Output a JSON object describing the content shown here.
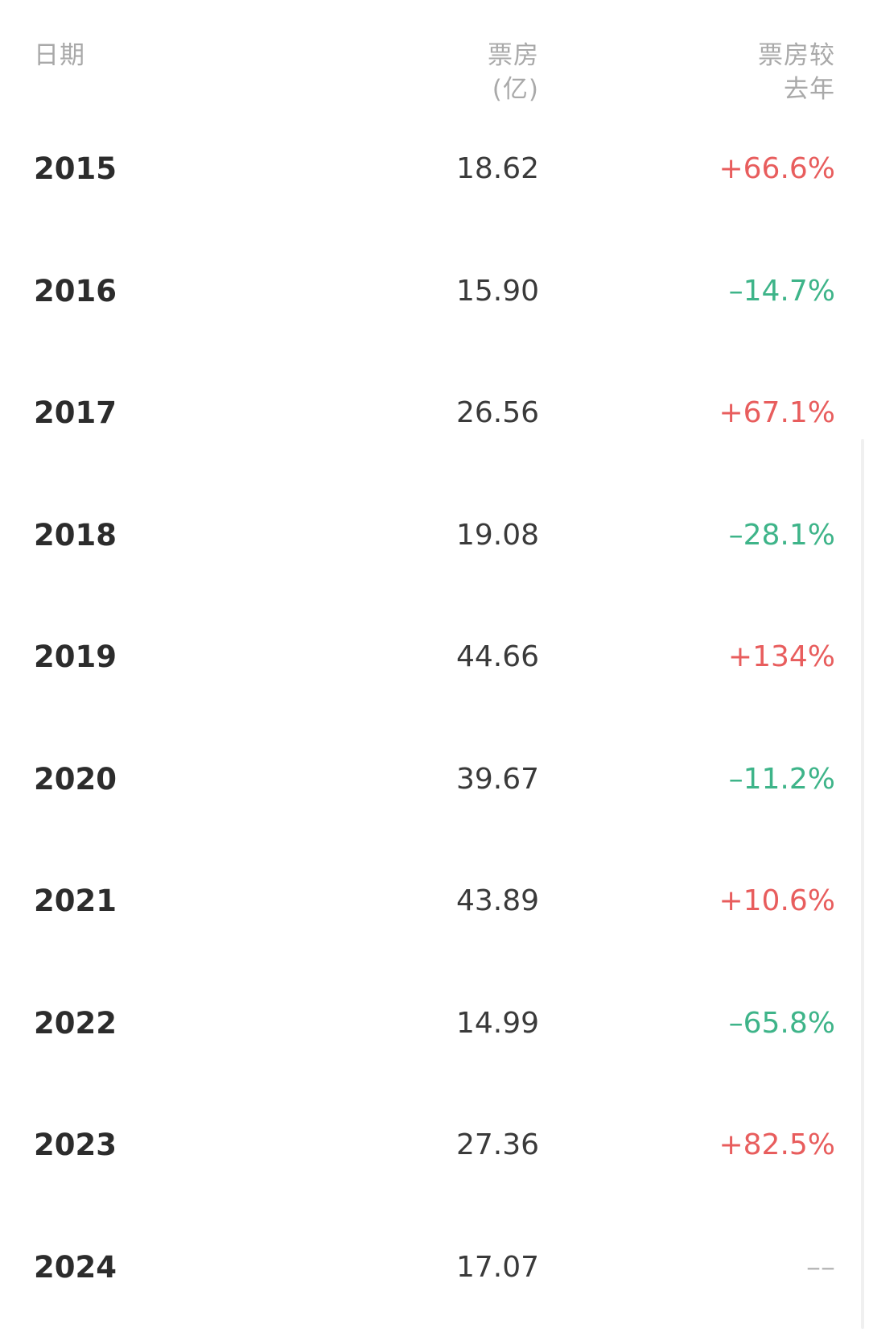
{
  "header": {
    "date_label": "日期",
    "box_label_line1": "票房",
    "box_label_line2": "(亿)",
    "change_label_line1": "票房较",
    "change_label_line2": "去年"
  },
  "rows": [
    {
      "year": "2015",
      "box": "18.62",
      "change": "+66.6%",
      "trend": "up"
    },
    {
      "year": "2016",
      "box": "15.90",
      "change": "–14.7%",
      "trend": "down"
    },
    {
      "year": "2017",
      "box": "26.56",
      "change": "+67.1%",
      "trend": "up"
    },
    {
      "year": "2018",
      "box": "19.08",
      "change": "–28.1%",
      "trend": "down"
    },
    {
      "year": "2019",
      "box": "44.66",
      "change": "+134%",
      "trend": "up"
    },
    {
      "year": "2020",
      "box": "39.67",
      "change": "–11.2%",
      "trend": "down"
    },
    {
      "year": "2021",
      "box": "43.89",
      "change": "+10.6%",
      "trend": "up"
    },
    {
      "year": "2022",
      "box": "14.99",
      "change": "–65.8%",
      "trend": "down"
    },
    {
      "year": "2023",
      "box": "27.36",
      "change": "+82.5%",
      "trend": "up"
    },
    {
      "year": "2024",
      "box": "17.07",
      "change": "––",
      "trend": "none"
    }
  ],
  "colors": {
    "up": "#e85d5d",
    "down": "#3eb489",
    "none": "#b8b8b8"
  }
}
